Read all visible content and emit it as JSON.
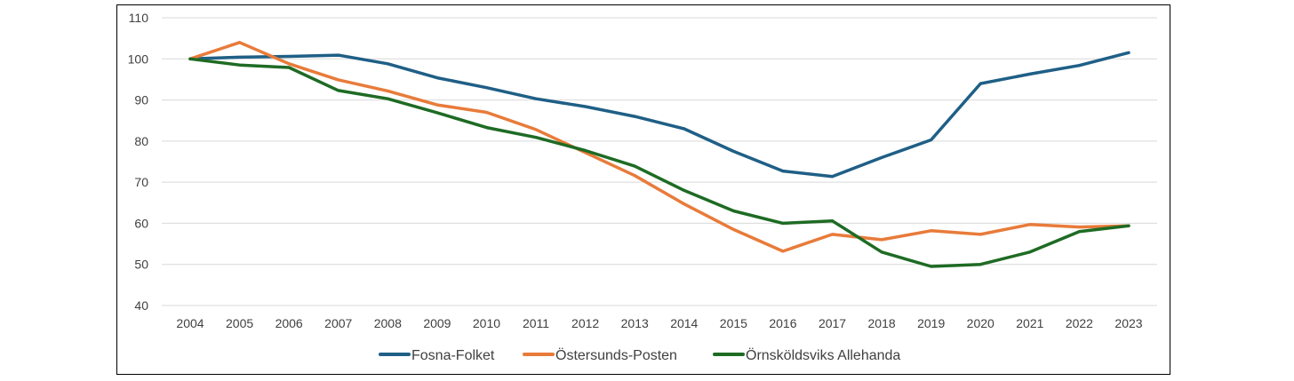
{
  "chart_data": {
    "type": "line",
    "title": "",
    "xlabel": "",
    "ylabel": "",
    "ylim": [
      40,
      110
    ],
    "yticks": [
      40,
      50,
      60,
      70,
      80,
      90,
      100,
      110
    ],
    "grid": "horizontal",
    "legend_position": "bottom",
    "categories": [
      "2004",
      "2005",
      "2006",
      "2007",
      "2008",
      "2009",
      "2010",
      "2011",
      "2012",
      "2013",
      "2014",
      "2015",
      "2016",
      "2017",
      "2018",
      "2019",
      "2020",
      "2021",
      "2022",
      "2023"
    ],
    "series": [
      {
        "name": "Fosna-Folket",
        "color": "#1f5f86",
        "values": [
          100,
          100.4,
          100.6,
          100.9,
          98.8,
          95.4,
          93,
          90.3,
          88.4,
          86,
          83,
          77.5,
          72.7,
          71.4,
          76,
          80.3,
          94,
          96.3,
          98.4,
          101.5
        ]
      },
      {
        "name": "Östersunds-Posten",
        "color": "#e87b3a",
        "values": [
          100,
          104,
          98.8,
          94.9,
          92.2,
          88.8,
          87,
          82.8,
          77.2,
          71.6,
          64.7,
          58.5,
          53.2,
          57.3,
          56,
          58.2,
          57.3,
          59.7,
          59.1,
          59.4
        ]
      },
      {
        "name": "Örnsköldsviks Allehanda",
        "color": "#1e6b24",
        "values": [
          100,
          98.5,
          97.9,
          92.3,
          90.3,
          86.9,
          83.3,
          80.9,
          77.7,
          73.9,
          68,
          63,
          60,
          60.6,
          53,
          49.5,
          50,
          53,
          58,
          59.4
        ]
      }
    ]
  }
}
